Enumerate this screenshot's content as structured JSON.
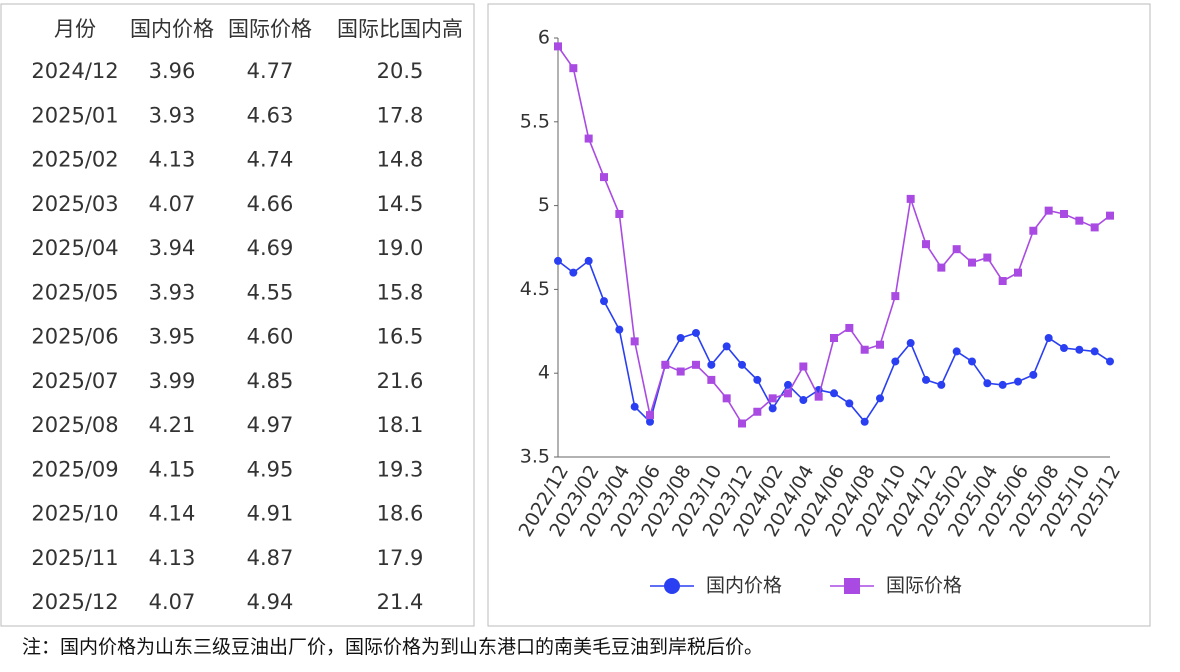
{
  "table": {
    "header": [
      "月份",
      "国内价格",
      "国际价格",
      "国际比国内高"
    ],
    "rows": [
      [
        "2024/12",
        "3.96",
        "4.77",
        "20.5"
      ],
      [
        "2025/01",
        "3.93",
        "4.63",
        "17.8"
      ],
      [
        "2025/02",
        "4.13",
        "4.74",
        "14.8"
      ],
      [
        "2025/03",
        "4.07",
        "4.66",
        "14.5"
      ],
      [
        "2025/04",
        "3.94",
        "4.69",
        "19.0"
      ],
      [
        "2025/05",
        "3.93",
        "4.55",
        "15.8"
      ],
      [
        "2025/06",
        "3.95",
        "4.60",
        "16.5"
      ],
      [
        "2025/07",
        "3.99",
        "4.85",
        "21.6"
      ],
      [
        "2025/08",
        "4.21",
        "4.97",
        "18.1"
      ],
      [
        "2025/09",
        "4.15",
        "4.95",
        "19.3"
      ],
      [
        "2025/10",
        "4.14",
        "4.91",
        "18.6"
      ],
      [
        "2025/11",
        "4.13",
        "4.87",
        "17.9"
      ],
      [
        "2025/12",
        "4.07",
        "4.94",
        "21.4"
      ]
    ]
  },
  "chart_data": {
    "type": "line",
    "categories": [
      "2022/12",
      null,
      "2023/02",
      null,
      "2023/04",
      null,
      "2023/06",
      null,
      "2023/08",
      null,
      "2023/10",
      null,
      "2023/12",
      null,
      "2024/02",
      null,
      "2024/04",
      null,
      "2024/06",
      null,
      "2024/08",
      null,
      "2024/10",
      null,
      "2024/12",
      null,
      "2025/02",
      null,
      "2025/04",
      null,
      "2025/06",
      null,
      "2025/08",
      null,
      "2025/10",
      null,
      "2025/12"
    ],
    "series": [
      {
        "name": "国内价格",
        "color": "#2a3ff2",
        "marker": "circle",
        "values": [
          4.67,
          4.6,
          4.67,
          4.43,
          4.26,
          3.8,
          3.71,
          4.05,
          4.21,
          4.24,
          4.05,
          4.16,
          4.05,
          3.96,
          3.79,
          3.93,
          3.84,
          3.9,
          3.88,
          3.82,
          3.71,
          3.85,
          4.07,
          4.18,
          3.96,
          3.93,
          4.13,
          4.07,
          3.94,
          3.93,
          3.95,
          3.99,
          4.21,
          4.15,
          4.14,
          4.13,
          4.07
        ]
      },
      {
        "name": "国际价格",
        "color": "#a94be2",
        "marker": "square",
        "values": [
          5.95,
          5.82,
          5.4,
          5.17,
          4.95,
          4.19,
          3.75,
          4.05,
          4.01,
          4.05,
          3.96,
          3.85,
          3.7,
          3.77,
          3.85,
          3.88,
          4.04,
          3.86,
          4.21,
          4.27,
          4.14,
          4.17,
          4.46,
          5.04,
          4.77,
          4.63,
          4.74,
          4.66,
          4.69,
          4.55,
          4.6,
          4.85,
          4.97,
          4.95,
          4.91,
          4.87,
          4.94
        ]
      }
    ],
    "ylim": [
      3.5,
      6
    ],
    "yticks": [
      3.5,
      4,
      4.5,
      5,
      5.5,
      6
    ],
    "grid": false,
    "legend": "bottom"
  },
  "note": "注：国内价格为山东三级豆油出厂价，国际价格为到山东港口的南美毛豆油到岸税后价。"
}
